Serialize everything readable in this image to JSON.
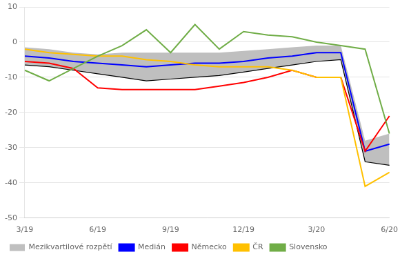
{
  "chart_data": {
    "type": "line",
    "categories": [
      "3/19",
      null,
      null,
      "6/19",
      null,
      null,
      "9/19",
      null,
      null,
      "12/19",
      null,
      null,
      "3/20",
      null,
      null,
      "6/20"
    ],
    "series": [
      {
        "name": "Mezikvartilové rozpětí",
        "type": "range",
        "color": "#BFBFBF",
        "lower": [
          -6.5,
          -7,
          -8,
          -9,
          -10,
          -11,
          -10.5,
          -10,
          -9.5,
          -8.5,
          -7.5,
          -6.5,
          -5.5,
          -5,
          -34,
          -35
        ],
        "upper": [
          -1.5,
          -2,
          -3,
          -3.5,
          -3,
          -3,
          -3,
          -3,
          -3,
          -2.5,
          -2,
          -1.5,
          -1,
          -1,
          -28,
          -26
        ]
      },
      {
        "name": "Medián",
        "color": "#0000FF",
        "values": [
          -4,
          -4.5,
          -5.5,
          -6,
          -6.5,
          -7,
          -6.5,
          -6,
          -6,
          -5.5,
          -4.5,
          -4,
          -3,
          -3,
          -31,
          -29
        ]
      },
      {
        "name": "Německo",
        "color": "#FF0000",
        "values": [
          -5.5,
          -6,
          -7.5,
          -13,
          -13.5,
          -13.5,
          -13.5,
          -13.5,
          -12.5,
          -11.5,
          -10,
          -8,
          -10,
          -10,
          -31,
          -21
        ]
      },
      {
        "name": "ČR",
        "color": "#FFC000",
        "values": [
          -2,
          -3,
          -3.5,
          -4,
          -4,
          -5,
          -5.5,
          -6.5,
          -7,
          -7,
          -7,
          -8,
          -10,
          -10,
          -41,
          -37
        ]
      },
      {
        "name": "Slovensko",
        "color": "#70AD47",
        "values": [
          -8,
          -11,
          -7.5,
          -4,
          -1,
          3.5,
          -3,
          5,
          -2,
          3,
          2,
          1.5,
          0,
          -1,
          -2,
          -26
        ]
      }
    ],
    "ylim": [
      -50,
      10
    ],
    "yticks": [
      -50,
      -40,
      -30,
      -20,
      -10,
      0,
      10
    ],
    "grid": "y",
    "legend": "bottom"
  }
}
